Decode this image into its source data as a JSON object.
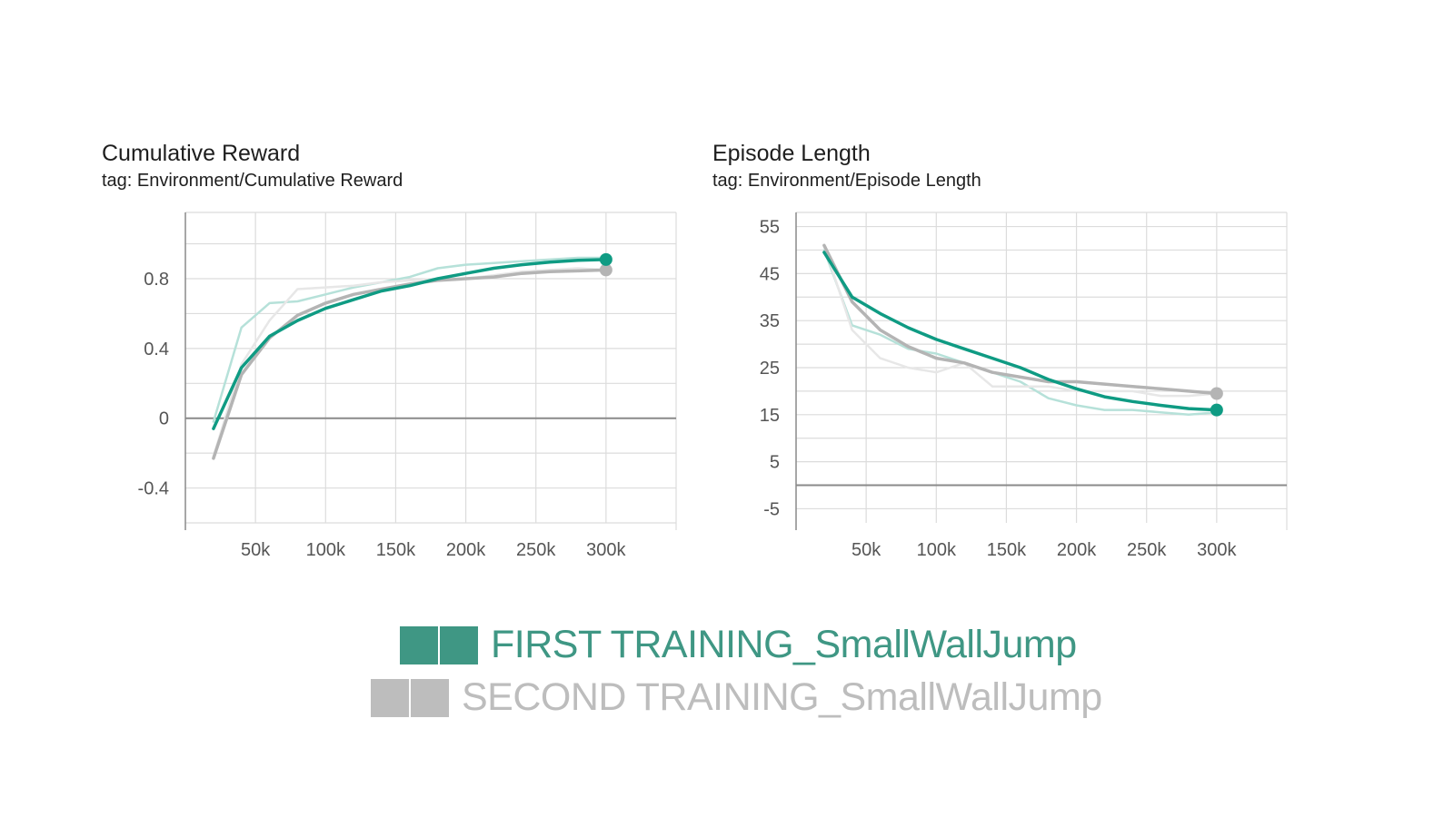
{
  "colors": {
    "first": "#0f9b83",
    "first_faint": "#b6e1d9",
    "second": "#b4b4b4",
    "second_faint": "#e7e7e7",
    "grid": "#dcdcdc",
    "axis": "#8a8a8a",
    "legend_first": "#3f9784",
    "legend_second": "#bdbdbd"
  },
  "legend": {
    "first_label": "FIRST TRAINING_SmallWallJump",
    "second_label": "SECOND TRAINING_SmallWallJump"
  },
  "chart_data": [
    {
      "type": "line",
      "title": "Cumulative Reward",
      "subtitle": "tag: Environment/Cumulative Reward",
      "xlabel": "",
      "ylabel": "",
      "xlim": [
        0,
        350000
      ],
      "ylim": [
        -0.6,
        1.18
      ],
      "x_ticks": [
        50000,
        100000,
        150000,
        200000,
        250000,
        300000
      ],
      "x_tick_labels": [
        "50k",
        "100k",
        "150k",
        "200k",
        "250k",
        "300k"
      ],
      "y_ticks": [
        -0.4,
        0,
        0.4,
        0.8
      ],
      "y_tick_labels": [
        "-0.4",
        "0",
        "0.4",
        "0.8"
      ],
      "y_minor_ticks": [
        -0.6,
        -0.2,
        0.2,
        0.6,
        1.0
      ],
      "grid": true,
      "series": [
        {
          "name": "FIRST TRAINING_SmallWallJump",
          "role": "raw",
          "color": "#b6e1d9",
          "x": [
            20000,
            40000,
            60000,
            80000,
            100000,
            120000,
            140000,
            160000,
            180000,
            200000,
            220000,
            240000,
            260000,
            280000,
            300000
          ],
          "y": [
            -0.02,
            0.52,
            0.66,
            0.67,
            0.71,
            0.75,
            0.78,
            0.81,
            0.86,
            0.88,
            0.89,
            0.9,
            0.91,
            0.92,
            0.92
          ]
        },
        {
          "name": "SECOND TRAINING_SmallWallJump",
          "role": "raw",
          "color": "#e7e7e7",
          "x": [
            20000,
            40000,
            60000,
            80000,
            100000,
            120000,
            140000,
            160000,
            180000,
            200000,
            220000,
            240000,
            260000,
            280000,
            300000
          ],
          "y": [
            -0.22,
            0.31,
            0.56,
            0.74,
            0.75,
            0.76,
            0.78,
            0.79,
            0.8,
            0.8,
            0.82,
            0.84,
            0.85,
            0.86,
            0.85
          ]
        },
        {
          "name": "SECOND TRAINING_SmallWallJump",
          "role": "smoothed",
          "color": "#b4b4b4",
          "end_marker": true,
          "x": [
            20000,
            40000,
            60000,
            80000,
            100000,
            120000,
            140000,
            160000,
            180000,
            200000,
            220000,
            240000,
            260000,
            280000,
            300000
          ],
          "y": [
            -0.23,
            0.25,
            0.46,
            0.59,
            0.66,
            0.71,
            0.74,
            0.77,
            0.79,
            0.8,
            0.81,
            0.83,
            0.84,
            0.845,
            0.85
          ]
        },
        {
          "name": "FIRST TRAINING_SmallWallJump",
          "role": "smoothed",
          "color": "#0f9b83",
          "end_marker": true,
          "x": [
            20000,
            40000,
            60000,
            80000,
            100000,
            120000,
            140000,
            160000,
            180000,
            200000,
            220000,
            240000,
            260000,
            280000,
            300000
          ],
          "y": [
            -0.06,
            0.29,
            0.47,
            0.56,
            0.63,
            0.68,
            0.73,
            0.76,
            0.8,
            0.83,
            0.86,
            0.88,
            0.895,
            0.905,
            0.91
          ]
        }
      ]
    },
    {
      "type": "line",
      "title": "Episode Length",
      "subtitle": "tag: Environment/Episode Length",
      "xlabel": "",
      "ylabel": "",
      "xlim": [
        0,
        350000
      ],
      "ylim": [
        -8,
        58
      ],
      "x_ticks": [
        50000,
        100000,
        150000,
        200000,
        250000,
        300000
      ],
      "x_tick_labels": [
        "50k",
        "100k",
        "150k",
        "200k",
        "250k",
        "300k"
      ],
      "y_ticks": [
        -5,
        5,
        15,
        25,
        35,
        45,
        55
      ],
      "y_tick_labels": [
        "-5",
        "5",
        "15",
        "25",
        "35",
        "45",
        "55"
      ],
      "y_minor_ticks": [
        0,
        10,
        20,
        30,
        40,
        50
      ],
      "grid": true,
      "series": [
        {
          "name": "FIRST TRAINING_SmallWallJump",
          "role": "raw",
          "color": "#b6e1d9",
          "x": [
            20000,
            40000,
            60000,
            80000,
            100000,
            120000,
            140000,
            160000,
            180000,
            200000,
            220000,
            240000,
            260000,
            280000,
            300000
          ],
          "y": [
            50,
            34,
            32,
            29,
            28,
            26,
            24,
            22,
            18.5,
            17,
            16,
            16,
            15.5,
            15,
            15.5
          ]
        },
        {
          "name": "SECOND TRAINING_SmallWallJump",
          "role": "raw",
          "color": "#e7e7e7",
          "x": [
            20000,
            40000,
            60000,
            80000,
            100000,
            120000,
            140000,
            160000,
            180000,
            200000,
            220000,
            240000,
            260000,
            280000,
            300000
          ],
          "y": [
            51,
            33,
            27,
            25,
            24,
            26,
            21,
            21,
            21,
            20,
            20,
            20,
            19,
            19,
            19.5
          ]
        },
        {
          "name": "SECOND TRAINING_SmallWallJump",
          "role": "smoothed",
          "color": "#b4b4b4",
          "end_marker": true,
          "x": [
            20000,
            40000,
            60000,
            80000,
            100000,
            120000,
            140000,
            160000,
            180000,
            200000,
            220000,
            240000,
            260000,
            280000,
            300000
          ],
          "y": [
            51,
            39,
            33,
            29.5,
            27,
            26,
            24,
            23,
            22,
            22,
            21.5,
            21,
            20.5,
            20,
            19.5
          ]
        },
        {
          "name": "FIRST TRAINING_SmallWallJump",
          "role": "smoothed",
          "color": "#0f9b83",
          "end_marker": true,
          "x": [
            20000,
            40000,
            60000,
            80000,
            100000,
            120000,
            140000,
            160000,
            180000,
            200000,
            220000,
            240000,
            260000,
            280000,
            300000
          ],
          "y": [
            49.5,
            40,
            36.5,
            33.5,
            31,
            29,
            27,
            25,
            22.5,
            20.5,
            18.8,
            17.8,
            17,
            16.3,
            16
          ]
        }
      ]
    }
  ]
}
